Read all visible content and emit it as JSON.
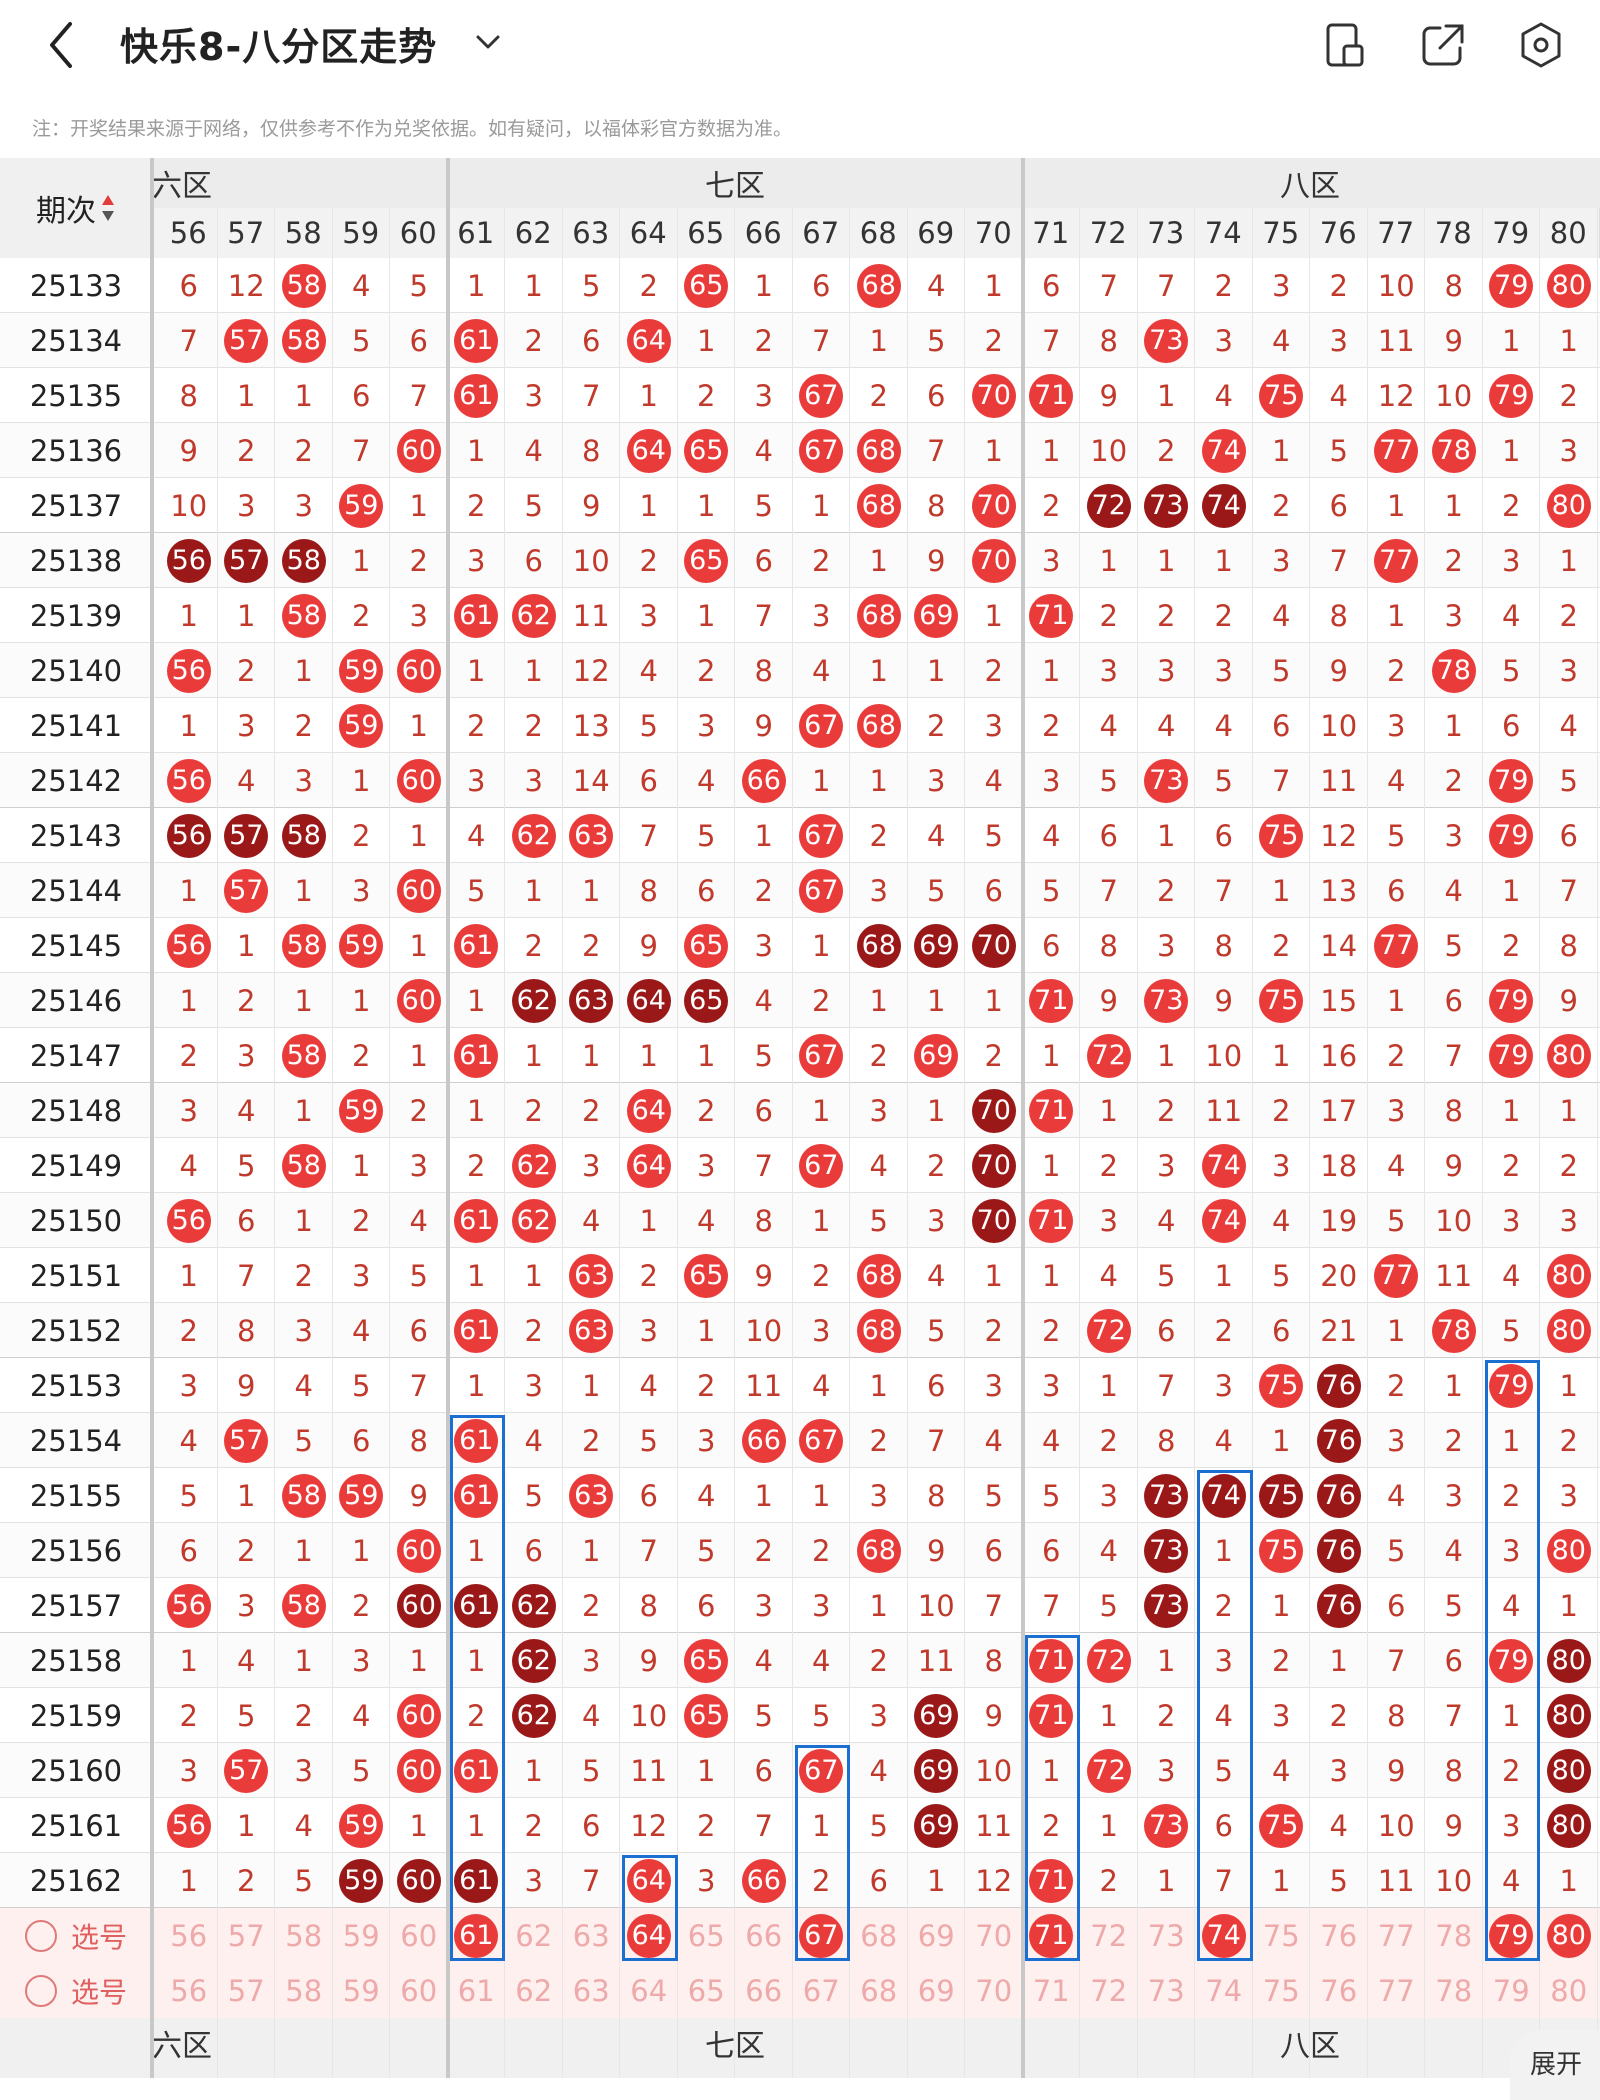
{
  "header": {
    "title": "快乐8-八分区走势",
    "back_icon": "back-arrow-icon",
    "dropdown_icon": "chevron-down-icon",
    "icons": [
      "phone-layout-icon",
      "share-icon",
      "settings-icon"
    ]
  },
  "note": "注：开奖结果来源于网络，仅供参考不作为兑奖依据。如有疑问，以福体彩官方数据为准。",
  "table": {
    "period_header": "期次",
    "sort_icon": "sort-arrows-icon",
    "zones": [
      {
        "label": "六区",
        "span": [
          56,
          60
        ]
      },
      {
        "label": "七区",
        "span": [
          61,
          70
        ]
      },
      {
        "label": "八区",
        "span": [
          71,
          80
        ]
      }
    ],
    "numbers": [
      56,
      57,
      58,
      59,
      60,
      61,
      62,
      63,
      64,
      65,
      66,
      67,
      68,
      69,
      70,
      71,
      72,
      73,
      74,
      75,
      76,
      77,
      78,
      79,
      80
    ],
    "rows": [
      {
        "p": "25133",
        "v": [
          "6",
          "12",
          "58",
          "4",
          "5",
          "1",
          "1",
          "5",
          "2",
          "65",
          "1",
          "6",
          "68",
          "4",
          "1",
          "6",
          "7",
          "7",
          "2",
          "3",
          "2",
          "10",
          "8",
          "79",
          "80"
        ]
      },
      {
        "p": "25134",
        "v": [
          "7",
          "57",
          "58",
          "5",
          "6",
          "61",
          "2",
          "6",
          "64",
          "1",
          "2",
          "7",
          "1",
          "5",
          "2",
          "7",
          "8",
          "73",
          "3",
          "4",
          "3",
          "11",
          "9",
          "1",
          "1"
        ]
      },
      {
        "p": "25135",
        "v": [
          "8",
          "1",
          "1",
          "6",
          "7",
          "61",
          "3",
          "7",
          "1",
          "2",
          "3",
          "67",
          "2",
          "6",
          "70",
          "71",
          "9",
          "1",
          "4",
          "75",
          "4",
          "12",
          "10",
          "79",
          "2"
        ]
      },
      {
        "p": "25136",
        "v": [
          "9",
          "2",
          "2",
          "7",
          "60",
          "1",
          "4",
          "8",
          "64",
          "65",
          "4",
          "67",
          "68",
          "7",
          "1",
          "1",
          "10",
          "2",
          "74",
          "1",
          "5",
          "77",
          "78",
          "1",
          "3"
        ]
      },
      {
        "p": "25137",
        "v": [
          "10",
          "3",
          "3",
          "59",
          "1",
          "2",
          "5",
          "9",
          "1",
          "1",
          "5",
          "1",
          "68",
          "8",
          "70",
          "2",
          "72d",
          "73d",
          "74d",
          "2",
          "6",
          "1",
          "1",
          "2",
          "80"
        ]
      },
      {
        "p": "25138",
        "v": [
          "56d",
          "57d",
          "58d",
          "1",
          "2",
          "3",
          "6",
          "10",
          "2",
          "65",
          "6",
          "2",
          "1",
          "9",
          "70",
          "3",
          "1",
          "1",
          "1",
          "3",
          "7",
          "77",
          "2",
          "3",
          "1"
        ]
      },
      {
        "p": "25139",
        "v": [
          "1",
          "1",
          "58",
          "2",
          "3",
          "61",
          "62",
          "11",
          "3",
          "1",
          "7",
          "3",
          "68",
          "69",
          "1",
          "71",
          "2",
          "2",
          "2",
          "4",
          "8",
          "1",
          "3",
          "4",
          "2"
        ]
      },
      {
        "p": "25140",
        "v": [
          "56",
          "2",
          "1",
          "59",
          "60",
          "1",
          "1",
          "12",
          "4",
          "2",
          "8",
          "4",
          "1",
          "1",
          "2",
          "1",
          "3",
          "3",
          "3",
          "5",
          "9",
          "2",
          "78",
          "5",
          "3"
        ]
      },
      {
        "p": "25141",
        "v": [
          "1",
          "3",
          "2",
          "59",
          "1",
          "2",
          "2",
          "13",
          "5",
          "3",
          "9",
          "67",
          "68",
          "2",
          "3",
          "2",
          "4",
          "4",
          "4",
          "6",
          "10",
          "3",
          "1",
          "6",
          "4"
        ]
      },
      {
        "p": "25142",
        "v": [
          "56",
          "4",
          "3",
          "1",
          "60",
          "3",
          "3",
          "14",
          "6",
          "4",
          "66",
          "1",
          "1",
          "3",
          "4",
          "3",
          "5",
          "73",
          "5",
          "7",
          "11",
          "4",
          "2",
          "79",
          "5"
        ]
      },
      {
        "p": "25143",
        "v": [
          "56d",
          "57d",
          "58d",
          "2",
          "1",
          "4",
          "62",
          "63",
          "7",
          "5",
          "1",
          "67",
          "2",
          "4",
          "5",
          "4",
          "6",
          "1",
          "6",
          "75",
          "12",
          "5",
          "3",
          "79",
          "6"
        ]
      },
      {
        "p": "25144",
        "v": [
          "1",
          "57",
          "1",
          "3",
          "60",
          "5",
          "1",
          "1",
          "8",
          "6",
          "2",
          "67",
          "3",
          "5",
          "6",
          "5",
          "7",
          "2",
          "7",
          "1",
          "13",
          "6",
          "4",
          "1",
          "7"
        ]
      },
      {
        "p": "25145",
        "v": [
          "56",
          "1",
          "58",
          "59",
          "1",
          "61",
          "2",
          "2",
          "9",
          "65",
          "3",
          "1",
          "68d",
          "69d",
          "70d",
          "6",
          "8",
          "3",
          "8",
          "2",
          "14",
          "77",
          "5",
          "2",
          "8"
        ]
      },
      {
        "p": "25146",
        "v": [
          "1",
          "2",
          "1",
          "1",
          "60",
          "1",
          "62d",
          "63d",
          "64d",
          "65d",
          "4",
          "2",
          "1",
          "1",
          "1",
          "71",
          "9",
          "73",
          "9",
          "75",
          "15",
          "1",
          "6",
          "79",
          "9"
        ]
      },
      {
        "p": "25147",
        "v": [
          "2",
          "3",
          "58",
          "2",
          "1",
          "61",
          "1",
          "1",
          "1",
          "1",
          "5",
          "67",
          "2",
          "69",
          "2",
          "1",
          "72",
          "1",
          "10",
          "1",
          "16",
          "2",
          "7",
          "79",
          "80"
        ]
      },
      {
        "p": "25148",
        "v": [
          "3",
          "4",
          "1",
          "59",
          "2",
          "1",
          "2",
          "2",
          "64",
          "2",
          "6",
          "1",
          "3",
          "1",
          "70d",
          "71",
          "1",
          "2",
          "11",
          "2",
          "17",
          "3",
          "8",
          "1",
          "1"
        ]
      },
      {
        "p": "25149",
        "v": [
          "4",
          "5",
          "58",
          "1",
          "3",
          "2",
          "62",
          "3",
          "64",
          "3",
          "7",
          "67",
          "4",
          "2",
          "70d",
          "1",
          "2",
          "3",
          "74",
          "3",
          "18",
          "4",
          "9",
          "2",
          "2"
        ]
      },
      {
        "p": "25150",
        "v": [
          "56",
          "6",
          "1",
          "2",
          "4",
          "61",
          "62",
          "4",
          "1",
          "4",
          "8",
          "1",
          "5",
          "3",
          "70d",
          "71",
          "3",
          "4",
          "74",
          "4",
          "19",
          "5",
          "10",
          "3",
          "3"
        ]
      },
      {
        "p": "25151",
        "v": [
          "1",
          "7",
          "2",
          "3",
          "5",
          "1",
          "1",
          "63",
          "2",
          "65",
          "9",
          "2",
          "68",
          "4",
          "1",
          "1",
          "4",
          "5",
          "1",
          "5",
          "20",
          "77",
          "11",
          "4",
          "80"
        ]
      },
      {
        "p": "25152",
        "v": [
          "2",
          "8",
          "3",
          "4",
          "6",
          "61",
          "2",
          "63",
          "3",
          "1",
          "10",
          "3",
          "68",
          "5",
          "2",
          "2",
          "72",
          "6",
          "2",
          "6",
          "21",
          "1",
          "78",
          "5",
          "80"
        ]
      },
      {
        "p": "25153",
        "v": [
          "3",
          "9",
          "4",
          "5",
          "7",
          "1",
          "3",
          "1",
          "4",
          "2",
          "11",
          "4",
          "1",
          "6",
          "3",
          "3",
          "1",
          "7",
          "3",
          "75",
          "76d",
          "2",
          "1",
          "79",
          "1"
        ]
      },
      {
        "p": "25154",
        "v": [
          "4",
          "57",
          "5",
          "6",
          "8",
          "61",
          "4",
          "2",
          "5",
          "3",
          "66",
          "67",
          "2",
          "7",
          "4",
          "4",
          "2",
          "8",
          "4",
          "1",
          "76d",
          "3",
          "2",
          "1",
          "2"
        ]
      },
      {
        "p": "25155",
        "v": [
          "5",
          "1",
          "58",
          "59",
          "9",
          "61",
          "5",
          "63",
          "6",
          "4",
          "1",
          "1",
          "3",
          "8",
          "5",
          "5",
          "3",
          "73d",
          "74d",
          "75d",
          "76d",
          "4",
          "3",
          "2",
          "3"
        ]
      },
      {
        "p": "25156",
        "v": [
          "6",
          "2",
          "1",
          "1",
          "60",
          "1",
          "6",
          "1",
          "7",
          "5",
          "2",
          "2",
          "68",
          "9",
          "6",
          "6",
          "4",
          "73d",
          "1",
          "75",
          "76d",
          "5",
          "4",
          "3",
          "80"
        ]
      },
      {
        "p": "25157",
        "v": [
          "56",
          "3",
          "58",
          "2",
          "60d",
          "61d",
          "62d",
          "2",
          "8",
          "6",
          "3",
          "3",
          "1",
          "10",
          "7",
          "7",
          "5",
          "73d",
          "2",
          "1",
          "76d",
          "6",
          "5",
          "4",
          "1"
        ]
      },
      {
        "p": "25158",
        "v": [
          "1",
          "4",
          "1",
          "3",
          "1",
          "1",
          "62d",
          "3",
          "9",
          "65",
          "4",
          "4",
          "2",
          "11",
          "8",
          "71",
          "72",
          "1",
          "3",
          "2",
          "1",
          "7",
          "6",
          "79",
          "80d"
        ]
      },
      {
        "p": "25159",
        "v": [
          "2",
          "5",
          "2",
          "4",
          "60",
          "2",
          "62d",
          "4",
          "10",
          "65",
          "5",
          "5",
          "3",
          "69d",
          "9",
          "71",
          "1",
          "2",
          "4",
          "3",
          "2",
          "8",
          "7",
          "1",
          "80d"
        ]
      },
      {
        "p": "25160",
        "v": [
          "3",
          "57",
          "3",
          "5",
          "60",
          "61",
          "1",
          "5",
          "11",
          "1",
          "6",
          "67",
          "4",
          "69d",
          "10",
          "1",
          "72",
          "3",
          "5",
          "4",
          "3",
          "9",
          "8",
          "2",
          "80d"
        ]
      },
      {
        "p": "25161",
        "v": [
          "56",
          "1",
          "4",
          "59",
          "1",
          "1",
          "2",
          "6",
          "12",
          "2",
          "7",
          "1",
          "5",
          "69d",
          "11",
          "2",
          "1",
          "73",
          "6",
          "75",
          "4",
          "10",
          "9",
          "3",
          "80d"
        ]
      },
      {
        "p": "25162",
        "v": [
          "1",
          "2",
          "5",
          "59d",
          "60d",
          "61d",
          "3",
          "7",
          "64",
          "3",
          "66",
          "2",
          "6",
          "1",
          "12",
          "71",
          "2",
          "1",
          "7",
          "1",
          "5",
          "11",
          "10",
          "4",
          "1"
        ]
      }
    ],
    "select_rows": [
      {
        "label": "选号",
        "picked": [
          61,
          64,
          67,
          71,
          74,
          79,
          80
        ]
      },
      {
        "label": "选号",
        "picked": []
      }
    ],
    "expand_label": "展开"
  },
  "colors": {
    "ball_red": "#ea3b3b",
    "ball_dark": "#9a1818",
    "miss_text": "#c0392b",
    "box_blue": "#1a6fd0"
  }
}
